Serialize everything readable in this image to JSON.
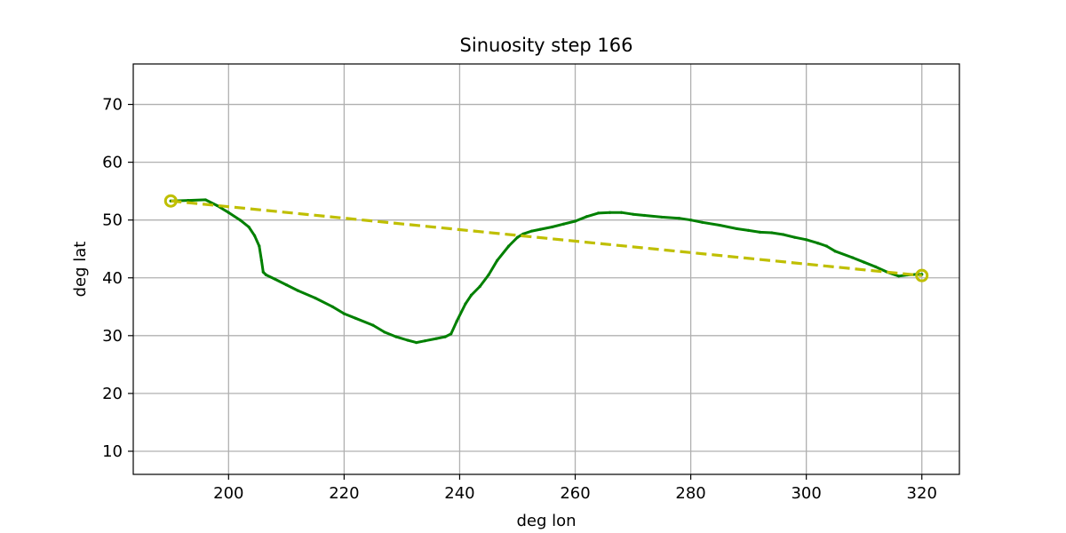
{
  "chart_data": {
    "type": "line",
    "title": "Sinuosity step 166",
    "xlabel": "deg lon",
    "ylabel": "deg lat",
    "xlim": [
      183.5,
      326.5
    ],
    "ylim": [
      6,
      77
    ],
    "xticks": [
      200,
      220,
      240,
      260,
      280,
      300,
      320
    ],
    "yticks": [
      10,
      20,
      30,
      40,
      50,
      60,
      70
    ],
    "xtick_labels": [
      "200",
      "220",
      "240",
      "260",
      "280",
      "300",
      "320"
    ],
    "ytick_labels": [
      "10",
      "20",
      "30",
      "40",
      "50",
      "60",
      "70"
    ],
    "grid": true,
    "colors": {
      "track": "#008000",
      "straight_line": "#bfbf00",
      "grid": "#b0b0b0",
      "axes": "#000000"
    },
    "series": [
      {
        "style": "solid",
        "color": "#008000",
        "x": [
          190.0,
          193.0,
          196.0,
          198.0,
          200.0,
          202.0,
          203.5,
          204.5,
          205.3,
          205.7,
          206.0,
          206.5,
          208.0,
          210.0,
          212.0,
          215.0,
          218.0,
          220.0,
          222.0,
          225.0,
          227.0,
          229.0,
          231.0,
          232.5,
          234.0,
          236.0,
          237.5,
          238.5,
          239.5,
          241.0,
          242.0,
          243.5,
          245.0,
          246.5,
          248.5,
          250.0,
          251.0,
          252.5,
          254.0,
          256.0,
          258.0,
          260.0,
          262.0,
          264.0,
          266.0,
          268.0,
          270.0,
          272.0,
          275.0,
          278.0,
          280.0,
          282.0,
          285.0,
          288.0,
          290.0,
          292.0,
          294.0,
          296.0,
          298.0,
          300.0,
          302.0,
          303.5,
          305.0,
          308.0,
          310.0,
          312.0,
          314.0,
          316.0,
          317.5,
          319.0,
          320.0
        ],
        "y": [
          53.3,
          53.4,
          53.5,
          52.5,
          51.3,
          50.0,
          48.8,
          47.3,
          45.5,
          43.0,
          41.0,
          40.5,
          39.8,
          38.8,
          37.8,
          36.5,
          35.0,
          33.8,
          33.0,
          31.8,
          30.6,
          29.8,
          29.2,
          28.8,
          29.1,
          29.5,
          29.8,
          30.3,
          32.5,
          35.5,
          37.0,
          38.5,
          40.5,
          43.0,
          45.5,
          47.0,
          47.6,
          48.1,
          48.4,
          48.8,
          49.3,
          49.8,
          50.6,
          51.2,
          51.3,
          51.3,
          51.0,
          50.8,
          50.5,
          50.3,
          50.0,
          49.6,
          49.1,
          48.5,
          48.2,
          47.9,
          47.8,
          47.5,
          47.0,
          46.6,
          46.0,
          45.5,
          44.6,
          43.5,
          42.7,
          41.9,
          41.0,
          40.3,
          40.5,
          40.6,
          40.6
        ]
      },
      {
        "style": "dashed",
        "color": "#bfbf00",
        "x": [
          190.0,
          320.0
        ],
        "y": [
          53.3,
          40.4
        ]
      }
    ],
    "endpoints": [
      {
        "x": 190.0,
        "y": 53.3
      },
      {
        "x": 320.0,
        "y": 40.4
      }
    ]
  }
}
